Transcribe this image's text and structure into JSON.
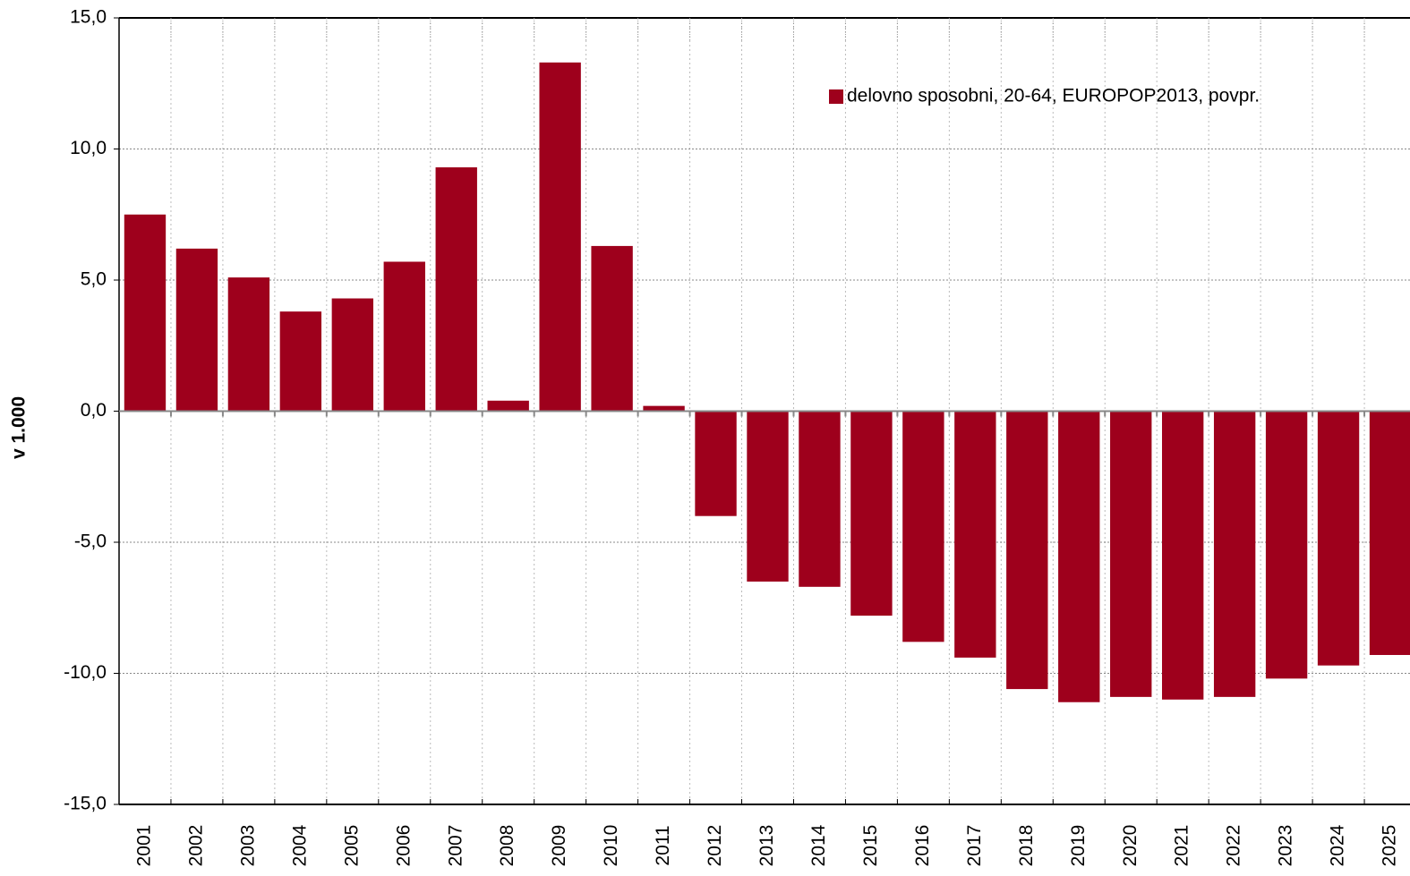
{
  "chart_data": {
    "type": "bar",
    "ylabel": "v 1.000",
    "categories": [
      "2001",
      "2002",
      "2003",
      "2004",
      "2005",
      "2006",
      "2007",
      "2008",
      "2009",
      "2010",
      "2011",
      "2012",
      "2013",
      "2014",
      "2015",
      "2016",
      "2017",
      "2018",
      "2019",
      "2020",
      "2021",
      "2022",
      "2023",
      "2024",
      "2025"
    ],
    "series": [
      {
        "name": "delovno sposobni, 20-64, EUROPOP2013, povpr.",
        "color": "#9e001c",
        "values": [
          7.5,
          6.2,
          5.1,
          3.8,
          4.3,
          5.7,
          9.3,
          0.4,
          13.3,
          6.3,
          0.2,
          -4.0,
          -6.5,
          -6.7,
          -7.8,
          -8.8,
          -9.4,
          -10.6,
          -11.1,
          -10.9,
          -11.0,
          -10.9,
          -10.2,
          -9.7,
          -9.3
        ]
      }
    ],
    "ylim": [
      -15,
      15
    ],
    "yticks": [
      {
        "value": -15,
        "label": "-15,0"
      },
      {
        "value": -10,
        "label": "-10,0"
      },
      {
        "value": -5,
        "label": "-5,0"
      },
      {
        "value": 0,
        "label": "0,0"
      },
      {
        "value": 5,
        "label": "5,0"
      },
      {
        "value": 10,
        "label": "10,0"
      },
      {
        "value": 15,
        "label": "15,0"
      }
    ],
    "grid": true,
    "legend": "top-right"
  }
}
